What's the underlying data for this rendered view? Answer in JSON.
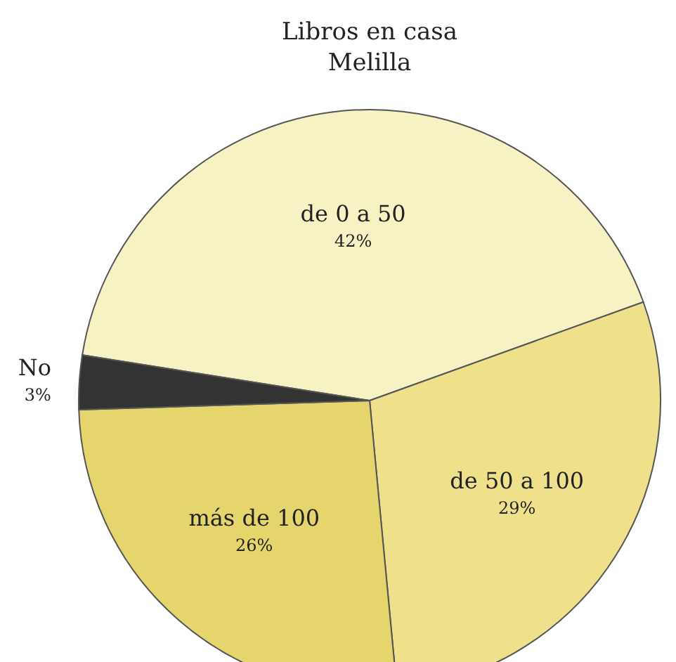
{
  "chart_data": {
    "type": "pie",
    "title": "Libros en casa",
    "subtitle": "Melilla",
    "categories": [
      "de 0 a 50",
      "de 50 a 100",
      "más de 100",
      "No"
    ],
    "values": [
      42,
      29,
      26,
      3
    ],
    "colors": [
      "#f7f2c4",
      "#efe08c",
      "#e5d56c",
      "#333333"
    ],
    "value_labels": [
      "42%",
      "29%",
      "26%",
      "3%"
    ]
  }
}
